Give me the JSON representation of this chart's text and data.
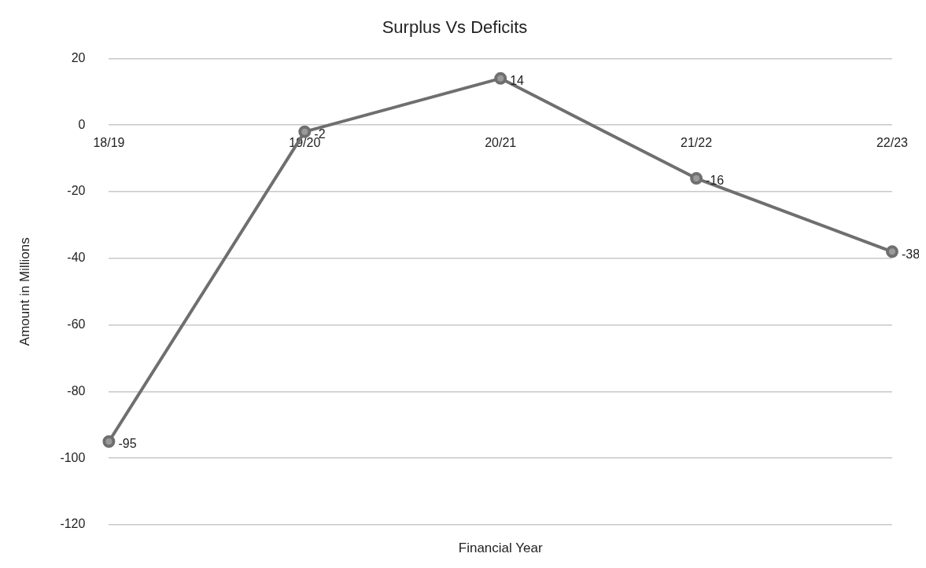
{
  "chart_data": {
    "type": "line",
    "title": "Surplus Vs Deficits",
    "xlabel": "Financial Year",
    "ylabel": "Amount in Millions",
    "categories": [
      "18/19",
      "19/20",
      "20/21",
      "21/22",
      "22/23"
    ],
    "series": [
      {
        "color": "#6f6f6f",
        "values": [
          -95,
          -2,
          14,
          -16,
          -38
        ]
      }
    ],
    "ylim": [
      -120,
      20
    ],
    "yticks": [
      -120,
      -100,
      -80,
      -60,
      -40,
      -20,
      0,
      20
    ],
    "grid": "y",
    "legend": false,
    "marker": "circle",
    "line_style": "solid",
    "data_labels": true
  }
}
